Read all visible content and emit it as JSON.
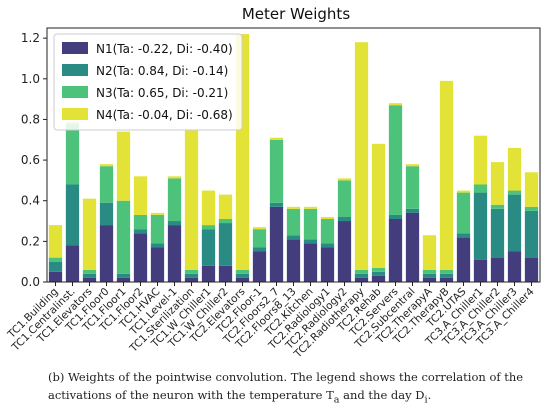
{
  "chart_data": {
    "type": "bar",
    "stacked": true,
    "title": "Meter Weights",
    "xlabel": "",
    "ylabel": "",
    "ylim": [
      0,
      1.25
    ],
    "yticks": [
      0.0,
      0.2,
      0.4,
      0.6,
      0.8,
      1.0,
      1.2
    ],
    "ytick_labels": [
      "0.0",
      "0.2",
      "0.4",
      "0.6",
      "0.8",
      "1.0",
      "1.2"
    ],
    "legend_position": "top-left",
    "categories": [
      "TC1.Building",
      "TC1.Centralinst.",
      "TC1.Elevators",
      "TC1.Floor0",
      "TC1.Floor1",
      "TC1.Floor2",
      "TC1.HVAC",
      "TC1.Level-1",
      "TC1.Sterilization",
      "TC1.W_Chiller1",
      "TC1.W_Chiller2",
      "TC2.Elevators",
      "TC2.Floor-1",
      "TC2.Floors2_7",
      "TC2.Floors8_13",
      "TC2.Kitchen",
      "TC2.Radiology1",
      "TC2.Radiology2",
      "TC2.Radiotherapy",
      "TC2.Rehab",
      "TC2.Servers",
      "TC2.Subcentral",
      "TC2.TherapyA",
      "TC2.TherapyB",
      "TC2.UTAS",
      "TC3.A_Chiller1",
      "TC3.A_Chiller2",
      "TC3.A_Chiller3",
      "TC3.A_Chiller4"
    ],
    "series": [
      {
        "name": "N1(Ta: -0.22, Di: -0.40)",
        "color": "#433d7d",
        "values": [
          0.05,
          0.18,
          0.02,
          0.28,
          0.02,
          0.24,
          0.17,
          0.28,
          0.02,
          0.08,
          0.08,
          0.02,
          0.15,
          0.37,
          0.21,
          0.19,
          0.17,
          0.3,
          0.02,
          0.03,
          0.31,
          0.34,
          0.02,
          0.02,
          0.22,
          0.11,
          0.12,
          0.15,
          0.12
        ]
      },
      {
        "name": "N2(Ta: 0.84, Di: -0.14)",
        "color": "#2a8a84",
        "values": [
          0.05,
          0.3,
          0.02,
          0.11,
          0.02,
          0.02,
          0.02,
          0.02,
          0.02,
          0.18,
          0.21,
          0.02,
          0.02,
          0.02,
          0.02,
          0.02,
          0.02,
          0.02,
          0.02,
          0.02,
          0.02,
          0.02,
          0.02,
          0.02,
          0.02,
          0.33,
          0.24,
          0.28,
          0.23
        ]
      },
      {
        "name": "N3(Ta: 0.65, Di: -0.21)",
        "color": "#4cc27a",
        "values": [
          0.02,
          0.3,
          0.02,
          0.18,
          0.36,
          0.07,
          0.14,
          0.21,
          0.02,
          0.02,
          0.02,
          0.02,
          0.09,
          0.31,
          0.13,
          0.15,
          0.12,
          0.18,
          0.02,
          0.02,
          0.54,
          0.21,
          0.02,
          0.02,
          0.2,
          0.04,
          0.02,
          0.02,
          0.02
        ]
      },
      {
        "name": "N4(Ta: -0.04, Di: -0.68)",
        "color": "#e3e237",
        "values": [
          0.16,
          0.01,
          0.35,
          0.01,
          0.34,
          0.19,
          0.01,
          0.01,
          0.69,
          0.17,
          0.12,
          1.16,
          0.01,
          0.01,
          0.01,
          0.01,
          0.01,
          0.01,
          1.12,
          0.61,
          0.01,
          0.01,
          0.17,
          0.93,
          0.01,
          0.24,
          0.21,
          0.21,
          0.17
        ]
      }
    ]
  },
  "caption": {
    "label": "(b)",
    "text": "Weights of the pointwise convolution. The legend shows the correlation of the activations of the neuron with the temperature T",
    "sub_a": "a",
    "mid": " and the day D",
    "sub_i": "i",
    "end": "."
  }
}
